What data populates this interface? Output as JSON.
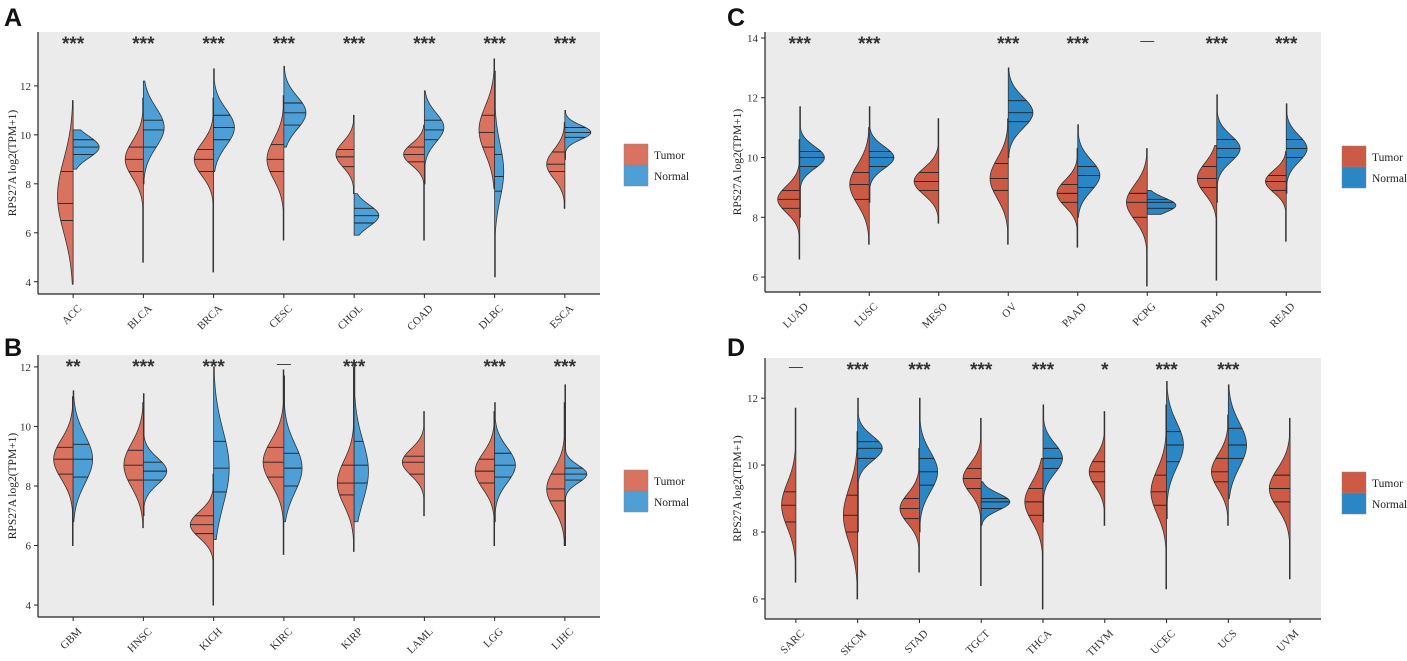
{
  "legend_labels": [
    "Tumor",
    "Normal"
  ],
  "chart_data": [
    {
      "panel": "A",
      "type": "split-violin",
      "ylabel": "RPS27A  log2(TPM+1)",
      "ylim": [
        3.5,
        14.2
      ],
      "yticks": [
        4,
        6,
        8,
        10,
        12
      ],
      "colors": {
        "tumor": "#d9735f",
        "normal": "#4d9fd6"
      },
      "series_names": [
        "Tumor",
        "Normal"
      ],
      "categories": [
        {
          "name": "ACC",
          "sig": "***",
          "tumor": {
            "min": 3.9,
            "max": 11.4,
            "median": 7.2,
            "q1": 6.5,
            "q3": 8.5,
            "mode": 7.5,
            "w": 0.6
          },
          "normal": {
            "min": 8.6,
            "max": 10.2,
            "median": 9.5,
            "q1": 9.2,
            "q3": 9.8,
            "mode": 9.5,
            "w": 1.0
          }
        },
        {
          "name": "BLCA",
          "sig": "***",
          "tumor": {
            "min": 4.8,
            "max": 11.5,
            "median": 9.0,
            "q1": 8.5,
            "q3": 9.5,
            "mode": 9.0,
            "w": 0.7
          },
          "normal": {
            "min": 8.0,
            "max": 12.2,
            "median": 10.2,
            "q1": 9.5,
            "q3": 10.6,
            "mode": 10.3,
            "w": 0.8
          }
        },
        {
          "name": "BRCA",
          "sig": "***",
          "tumor": {
            "min": 4.4,
            "max": 11.5,
            "median": 9.0,
            "q1": 8.5,
            "q3": 9.4,
            "mode": 9.0,
            "w": 0.75
          },
          "normal": {
            "min": 8.5,
            "max": 12.7,
            "median": 10.3,
            "q1": 9.8,
            "q3": 10.8,
            "mode": 10.3,
            "w": 0.8
          }
        },
        {
          "name": "CESC",
          "sig": "***",
          "tumor": {
            "min": 5.7,
            "max": 11.6,
            "median": 9.0,
            "q1": 8.5,
            "q3": 9.6,
            "mode": 9.0,
            "w": 0.65
          },
          "normal": {
            "min": 9.5,
            "max": 12.8,
            "median": 10.9,
            "q1": 10.4,
            "q3": 11.3,
            "mode": 10.9,
            "w": 0.85
          }
        },
        {
          "name": "CHOL",
          "sig": "***",
          "tumor": {
            "min": 7.6,
            "max": 10.8,
            "median": 9.1,
            "q1": 8.7,
            "q3": 9.4,
            "mode": 9.2,
            "w": 0.7
          },
          "normal": {
            "min": 5.9,
            "max": 7.6,
            "median": 6.7,
            "q1": 6.4,
            "q3": 7.0,
            "mode": 6.7,
            "w": 0.95
          }
        },
        {
          "name": "COAD",
          "sig": "***",
          "tumor": {
            "min": 5.7,
            "max": 10.4,
            "median": 9.2,
            "q1": 8.9,
            "q3": 9.5,
            "mode": 9.2,
            "w": 0.8
          },
          "normal": {
            "min": 8.0,
            "max": 11.8,
            "median": 10.2,
            "q1": 9.8,
            "q3": 10.6,
            "mode": 10.3,
            "w": 0.75
          }
        },
        {
          "name": "DLBC",
          "sig": "***",
          "tumor": {
            "min": 7.8,
            "max": 13.1,
            "median": 10.1,
            "q1": 9.5,
            "q3": 10.8,
            "mode": 10.2,
            "w": 0.6
          },
          "normal": {
            "min": 4.2,
            "max": 12.6,
            "median": 8.3,
            "q1": 7.7,
            "q3": 9.2,
            "mode": 8.5,
            "w": 0.35
          }
        },
        {
          "name": "ESCA",
          "sig": "***",
          "tumor": {
            "min": 7.0,
            "max": 10.5,
            "median": 8.8,
            "q1": 8.5,
            "q3": 9.3,
            "mode": 8.8,
            "w": 0.7
          },
          "normal": {
            "min": 9.0,
            "max": 11.0,
            "median": 10.1,
            "q1": 9.9,
            "q3": 10.3,
            "mode": 10.1,
            "w": 1.0
          }
        }
      ]
    },
    {
      "panel": "B",
      "type": "split-violin",
      "ylabel": "RPS27A  log2(TPM+1)",
      "ylim": [
        3.6,
        12.4
      ],
      "yticks": [
        4,
        6,
        8,
        10,
        12
      ],
      "colors": {
        "tumor": "#d9735f",
        "normal": "#4d9fd6"
      },
      "series_names": [
        "Tumor",
        "Normal"
      ],
      "categories": [
        {
          "name": "GBM",
          "sig": "**",
          "tumor": {
            "min": 6.0,
            "max": 11.0,
            "median": 8.9,
            "q1": 8.4,
            "q3": 9.3,
            "mode": 8.9,
            "w": 0.75
          },
          "normal": {
            "min": 6.8,
            "max": 11.2,
            "median": 8.9,
            "q1": 8.3,
            "q3": 9.4,
            "mode": 8.9,
            "w": 0.75
          }
        },
        {
          "name": "HNSC",
          "sig": "***",
          "tumor": {
            "min": 6.6,
            "max": 10.8,
            "median": 8.7,
            "q1": 8.2,
            "q3": 9.2,
            "mode": 8.7,
            "w": 0.75
          },
          "normal": {
            "min": 7.0,
            "max": 11.1,
            "median": 8.5,
            "q1": 8.2,
            "q3": 8.8,
            "mode": 8.5,
            "w": 0.9
          }
        },
        {
          "name": "KICH",
          "sig": "***",
          "tumor": {
            "min": 4.0,
            "max": 8.4,
            "median": 6.7,
            "q1": 6.4,
            "q3": 7.0,
            "mode": 6.7,
            "w": 0.9
          },
          "normal": {
            "min": 6.2,
            "max": 12.0,
            "median": 8.6,
            "q1": 7.8,
            "q3": 9.5,
            "mode": 8.6,
            "w": 0.6
          }
        },
        {
          "name": "KIRC",
          "sig": "—",
          "tumor": {
            "min": 5.7,
            "max": 11.9,
            "median": 8.8,
            "q1": 8.3,
            "q3": 9.3,
            "mode": 8.8,
            "w": 0.8
          },
          "normal": {
            "min": 6.8,
            "max": 11.7,
            "median": 8.6,
            "q1": 8.0,
            "q3": 9.1,
            "mode": 8.6,
            "w": 0.7
          }
        },
        {
          "name": "KIRP",
          "sig": "***",
          "tumor": {
            "min": 5.8,
            "max": 12.0,
            "median": 8.1,
            "q1": 7.7,
            "q3": 8.7,
            "mode": 8.1,
            "w": 0.65
          },
          "normal": {
            "min": 6.8,
            "max": 12.1,
            "median": 8.7,
            "q1": 8.1,
            "q3": 9.5,
            "mode": 8.5,
            "w": 0.55
          }
        },
        {
          "name": "LAML",
          "sig": "",
          "tumor": {
            "min": 7.0,
            "max": 10.5,
            "median": 8.8,
            "q1": 8.4,
            "q3": 9.0,
            "mode": 8.8,
            "w": 0.85
          },
          "normal": null
        },
        {
          "name": "LGG",
          "sig": "***",
          "tumor": {
            "min": 6.0,
            "max": 10.5,
            "median": 8.5,
            "q1": 8.1,
            "q3": 8.9,
            "mode": 8.5,
            "w": 0.75
          },
          "normal": {
            "min": 6.8,
            "max": 10.8,
            "median": 8.7,
            "q1": 8.3,
            "q3": 9.1,
            "mode": 8.7,
            "w": 0.8
          }
        },
        {
          "name": "LIHC",
          "sig": "***",
          "tumor": {
            "min": 6.0,
            "max": 10.8,
            "median": 7.9,
            "q1": 7.5,
            "q3": 8.4,
            "mode": 7.9,
            "w": 0.7
          },
          "normal": {
            "min": 6.0,
            "max": 11.4,
            "median": 8.4,
            "q1": 8.2,
            "q3": 8.6,
            "mode": 8.4,
            "w": 0.85
          }
        }
      ]
    },
    {
      "panel": "C",
      "type": "split-violin",
      "ylabel": "RPS27A  log2(TPM+1)",
      "ylim": [
        5.5,
        14.2
      ],
      "yticks": [
        6,
        8,
        10,
        12,
        14
      ],
      "colors": {
        "tumor": "#cc5a44",
        "normal": "#2a86c4"
      },
      "series_names": [
        "Tumor",
        "Normal"
      ],
      "categories": [
        {
          "name": "LUAD",
          "sig": "***",
          "tumor": {
            "min": 6.6,
            "max": 10.6,
            "median": 8.6,
            "q1": 8.3,
            "q3": 8.9,
            "mode": 8.6,
            "w": 0.85
          },
          "normal": {
            "min": 8.0,
            "max": 11.7,
            "median": 10.0,
            "q1": 9.7,
            "q3": 10.2,
            "mode": 10.0,
            "w": 0.95
          }
        },
        {
          "name": "LUSC",
          "sig": "***",
          "tumor": {
            "min": 7.1,
            "max": 11.0,
            "median": 9.1,
            "q1": 8.6,
            "q3": 9.5,
            "mode": 9.1,
            "w": 0.75
          },
          "normal": {
            "min": 8.5,
            "max": 11.7,
            "median": 10.0,
            "q1": 9.7,
            "q3": 10.2,
            "mode": 10.0,
            "w": 0.95
          }
        },
        {
          "name": "MESO",
          "sig": "",
          "tumor": {
            "min": 7.8,
            "max": 11.3,
            "median": 9.2,
            "q1": 8.9,
            "q3": 9.5,
            "mode": 9.2,
            "w": 0.95
          },
          "normal": null
        },
        {
          "name": "OV",
          "sig": "***",
          "tumor": {
            "min": 7.1,
            "max": 11.3,
            "median": 9.3,
            "q1": 8.9,
            "q3": 9.8,
            "mode": 9.3,
            "w": 0.7
          },
          "normal": {
            "min": 10.0,
            "max": 13.0,
            "median": 11.5,
            "q1": 11.2,
            "q3": 11.9,
            "mode": 11.5,
            "w": 0.95
          }
        },
        {
          "name": "PAAD",
          "sig": "***",
          "tumor": {
            "min": 7.0,
            "max": 10.3,
            "median": 8.8,
            "q1": 8.5,
            "q3": 9.1,
            "mode": 8.8,
            "w": 0.8
          },
          "normal": {
            "min": 8.0,
            "max": 11.1,
            "median": 9.4,
            "q1": 9.0,
            "q3": 9.7,
            "mode": 9.4,
            "w": 0.85
          }
        },
        {
          "name": "PCPG",
          "sig": "—",
          "tumor": {
            "min": 5.7,
            "max": 10.3,
            "median": 8.5,
            "q1": 8.0,
            "q3": 8.8,
            "mode": 8.5,
            "w": 0.8
          },
          "normal": {
            "min": 8.1,
            "max": 8.9,
            "median": 8.5,
            "q1": 8.3,
            "q3": 8.6,
            "mode": 8.4,
            "w": 1.1
          }
        },
        {
          "name": "PRAD",
          "sig": "***",
          "tumor": {
            "min": 5.9,
            "max": 10.4,
            "median": 9.3,
            "q1": 9.0,
            "q3": 9.7,
            "mode": 9.3,
            "w": 0.75
          },
          "normal": {
            "min": 8.5,
            "max": 12.1,
            "median": 10.3,
            "q1": 10.0,
            "q3": 10.6,
            "mode": 10.3,
            "w": 0.9
          }
        },
        {
          "name": "READ",
          "sig": "***",
          "tumor": {
            "min": 7.2,
            "max": 10.2,
            "median": 9.2,
            "q1": 8.9,
            "q3": 9.4,
            "mode": 9.2,
            "w": 0.8
          },
          "normal": {
            "min": 8.8,
            "max": 11.8,
            "median": 10.3,
            "q1": 10.0,
            "q3": 10.6,
            "mode": 10.3,
            "w": 0.8
          }
        }
      ]
    },
    {
      "panel": "D",
      "type": "split-violin",
      "ylabel": "RPS27A  log2(TPM+1)",
      "ylim": [
        5.4,
        13.2
      ],
      "yticks": [
        6,
        8,
        10,
        12
      ],
      "colors": {
        "tumor": "#cc5a44",
        "normal": "#2a86c4"
      },
      "series_names": [
        "Tumor",
        "Normal"
      ],
      "categories": [
        {
          "name": "SARC",
          "sig": "—",
          "tumor": {
            "min": 6.5,
            "max": 11.7,
            "median": 8.8,
            "q1": 8.3,
            "q3": 9.2,
            "mode": 8.8,
            "w": 0.55
          },
          "normal": null
        },
        {
          "name": "SKCM",
          "sig": "***",
          "tumor": {
            "min": 6.0,
            "max": 11.0,
            "median": 8.5,
            "q1": 8.0,
            "q3": 9.1,
            "mode": 8.5,
            "w": 0.55
          },
          "normal": {
            "min": 8.0,
            "max": 12.0,
            "median": 10.5,
            "q1": 10.2,
            "q3": 10.7,
            "mode": 10.5,
            "w": 0.95
          }
        },
        {
          "name": "STAD",
          "sig": "***",
          "tumor": {
            "min": 6.8,
            "max": 10.5,
            "median": 8.7,
            "q1": 8.4,
            "q3": 9.0,
            "mode": 8.7,
            "w": 0.75
          },
          "normal": {
            "min": 8.0,
            "max": 12.0,
            "median": 9.8,
            "q1": 9.4,
            "q3": 10.2,
            "mode": 9.8,
            "w": 0.7
          }
        },
        {
          "name": "TGCT",
          "sig": "***",
          "tumor": {
            "min": 6.4,
            "max": 11.4,
            "median": 9.6,
            "q1": 9.3,
            "q3": 9.9,
            "mode": 9.6,
            "w": 0.7
          },
          "normal": {
            "min": 8.2,
            "max": 9.5,
            "median": 8.9,
            "q1": 8.7,
            "q3": 9.0,
            "mode": 8.9,
            "w": 1.1
          }
        },
        {
          "name": "THCA",
          "sig": "***",
          "tumor": {
            "min": 5.7,
            "max": 10.2,
            "median": 8.9,
            "q1": 8.5,
            "q3": 9.3,
            "mode": 8.9,
            "w": 0.7
          },
          "normal": {
            "min": 8.3,
            "max": 11.8,
            "median": 10.2,
            "q1": 9.9,
            "q3": 10.5,
            "mode": 10.2,
            "w": 0.75
          }
        },
        {
          "name": "THYM",
          "sig": "*",
          "tumor": {
            "min": 8.2,
            "max": 11.6,
            "median": 9.8,
            "q1": 9.5,
            "q3": 10.1,
            "mode": 9.8,
            "w": 0.6
          },
          "normal": null
        },
        {
          "name": "UCEC",
          "sig": "***",
          "tumor": {
            "min": 6.3,
            "max": 11.8,
            "median": 9.2,
            "q1": 8.8,
            "q3": 9.7,
            "mode": 9.2,
            "w": 0.6
          },
          "normal": {
            "min": 8.4,
            "max": 12.5,
            "median": 10.6,
            "q1": 10.1,
            "q3": 11.0,
            "mode": 10.6,
            "w": 0.65
          }
        },
        {
          "name": "UCS",
          "sig": "***",
          "tumor": {
            "min": 8.2,
            "max": 11.5,
            "median": 9.8,
            "q1": 9.5,
            "q3": 10.2,
            "mode": 9.8,
            "w": 0.65
          },
          "normal": {
            "min": 9.0,
            "max": 12.4,
            "median": 10.6,
            "q1": 10.2,
            "q3": 11.1,
            "mode": 10.6,
            "w": 0.7
          }
        },
        {
          "name": "UVM",
          "sig": "",
          "tumor": {
            "min": 6.6,
            "max": 11.4,
            "median": 9.3,
            "q1": 8.9,
            "q3": 9.7,
            "mode": 9.3,
            "w": 0.8
          },
          "normal": null
        }
      ]
    }
  ]
}
